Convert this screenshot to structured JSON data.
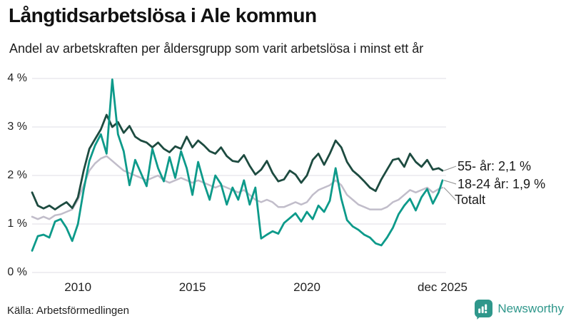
{
  "header": {
    "title": "Långtidsarbetslösa i Ale kommun",
    "subtitle": "Andel av arbetskraften per åldersgrupp som varit arbetslösa i minst ett år"
  },
  "footer": {
    "source": "Källa: Arbetsförmedlingen",
    "brand": "Newsworthy",
    "brand_icon": "newsworthy-bars-logo",
    "brand_color": "#2f978b"
  },
  "colors": {
    "grid": "#e5e3e9",
    "leader": "#9a9a9a",
    "text": "#1a1a1a"
  },
  "chart_data": {
    "type": "line",
    "title": "Långtidsarbetslösa i Ale kommun",
    "subtitle": "Andel av arbetskraften per åldersgrupp som varit arbetslösa i minst ett år",
    "grid": true,
    "legend_position": "end-of-line-labels",
    "ylim": [
      0,
      4
    ],
    "xlim": [
      2008,
      2025.92
    ],
    "yticks": [
      {
        "value": 0,
        "label": "0 %"
      },
      {
        "value": 1,
        "label": "1 %"
      },
      {
        "value": 2,
        "label": "2 %"
      },
      {
        "value": 3,
        "label": "3 %"
      },
      {
        "value": 4,
        "label": "4 %"
      }
    ],
    "xticks": [
      {
        "value": 2010,
        "label": "2010"
      },
      {
        "value": 2015,
        "label": "2015"
      },
      {
        "value": 2020,
        "label": "2020"
      },
      {
        "value": 2025.92,
        "label": "dec 2025"
      }
    ],
    "x": [
      2008,
      2008.25,
      2008.5,
      2008.75,
      2009,
      2009.25,
      2009.5,
      2009.75,
      2010,
      2010.25,
      2010.5,
      2010.75,
      2011,
      2011.25,
      2011.5,
      2011.75,
      2012,
      2012.25,
      2012.5,
      2012.75,
      2013,
      2013.25,
      2013.5,
      2013.75,
      2014,
      2014.25,
      2014.5,
      2014.75,
      2015,
      2015.25,
      2015.5,
      2015.75,
      2016,
      2016.25,
      2016.5,
      2016.75,
      2017,
      2017.25,
      2017.5,
      2017.75,
      2018,
      2018.25,
      2018.5,
      2018.75,
      2019,
      2019.25,
      2019.5,
      2019.75,
      2020,
      2020.25,
      2020.5,
      2020.75,
      2021,
      2021.25,
      2021.5,
      2021.75,
      2022,
      2022.25,
      2022.5,
      2022.75,
      2023,
      2023.25,
      2023.5,
      2023.75,
      2024,
      2024.25,
      2024.5,
      2024.75,
      2025,
      2025.25,
      2025.5,
      2025.75,
      2025.92
    ],
    "series": [
      {
        "name": "Totalt",
        "end_label": "Totalt",
        "end_value": 1.75,
        "color": "#c1bdca",
        "stroke_width": 2.5,
        "values": [
          1.15,
          1.1,
          1.15,
          1.1,
          1.18,
          1.2,
          1.25,
          1.3,
          1.5,
          1.8,
          2.1,
          2.25,
          2.35,
          2.4,
          2.3,
          2.2,
          2.1,
          2.05,
          2.0,
          1.95,
          1.9,
          1.95,
          2.0,
          1.9,
          1.85,
          1.9,
          1.95,
          1.9,
          1.85,
          1.9,
          1.85,
          1.8,
          1.75,
          1.8,
          1.75,
          1.7,
          1.65,
          1.7,
          1.6,
          1.5,
          1.45,
          1.5,
          1.45,
          1.35,
          1.35,
          1.4,
          1.45,
          1.4,
          1.45,
          1.6,
          1.7,
          1.75,
          1.8,
          1.9,
          1.8,
          1.6,
          1.5,
          1.4,
          1.35,
          1.3,
          1.3,
          1.3,
          1.35,
          1.45,
          1.5,
          1.6,
          1.7,
          1.65,
          1.7,
          1.75,
          1.65,
          1.72,
          1.75
        ]
      },
      {
        "name": "55- år",
        "end_label": "55- år: 2,1 %",
        "end_value": 2.1,
        "color": "#1d4b40",
        "stroke_width": 2.8,
        "values": [
          1.65,
          1.38,
          1.32,
          1.38,
          1.3,
          1.38,
          1.45,
          1.33,
          1.55,
          2.1,
          2.55,
          2.75,
          2.95,
          3.25,
          3.0,
          3.1,
          2.88,
          3.02,
          2.8,
          2.72,
          2.68,
          2.58,
          2.68,
          2.55,
          2.48,
          2.6,
          2.55,
          2.8,
          2.58,
          2.72,
          2.62,
          2.5,
          2.45,
          2.58,
          2.4,
          2.3,
          2.28,
          2.42,
          2.2,
          2.02,
          2.12,
          2.3,
          2.05,
          1.88,
          1.92,
          2.1,
          2.02,
          1.85,
          2.0,
          2.32,
          2.45,
          2.22,
          2.45,
          2.72,
          2.58,
          2.28,
          2.1,
          2.0,
          1.88,
          1.75,
          1.68,
          1.92,
          2.12,
          2.32,
          2.35,
          2.18,
          2.45,
          2.28,
          2.18,
          2.32,
          2.12,
          2.15,
          2.1
        ]
      },
      {
        "name": "18-24 år",
        "end_label": "18-24 år: 1,9 %",
        "end_value": 1.9,
        "color": "#0d9a8a",
        "stroke_width": 2.8,
        "values": [
          0.45,
          0.75,
          0.78,
          0.72,
          1.05,
          1.1,
          0.92,
          0.65,
          1.0,
          1.7,
          2.3,
          2.62,
          2.85,
          2.45,
          3.98,
          2.85,
          2.5,
          1.8,
          2.32,
          2.05,
          1.78,
          2.55,
          2.15,
          1.88,
          2.38,
          1.95,
          2.5,
          2.15,
          1.6,
          2.28,
          1.85,
          1.5,
          2.0,
          1.82,
          1.4,
          1.75,
          1.5,
          1.9,
          1.4,
          1.75,
          0.7,
          0.78,
          0.85,
          0.8,
          1.02,
          1.12,
          1.22,
          1.05,
          1.25,
          1.1,
          1.38,
          1.25,
          1.48,
          2.15,
          1.52,
          1.08,
          0.95,
          0.88,
          0.78,
          0.72,
          0.6,
          0.56,
          0.72,
          0.92,
          1.2,
          1.38,
          1.52,
          1.28,
          1.55,
          1.72,
          1.42,
          1.65,
          1.9
        ]
      }
    ]
  }
}
